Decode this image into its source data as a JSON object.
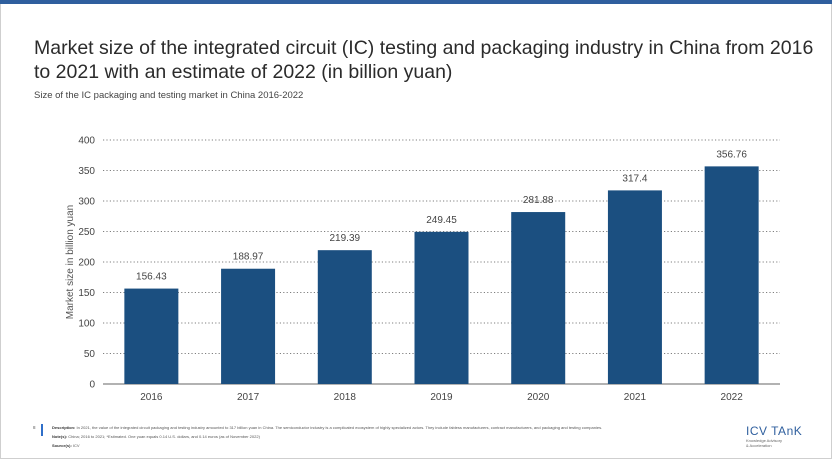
{
  "title": "Market size of the integrated circuit (IC) testing and packaging industry in China from 2016 to 2021 with an estimate of 2022 (in billion yuan)",
  "subtitle": "Size of the IC packaging and testing market in China 2016-2022",
  "colors": {
    "bar": "#1b4f80",
    "accent": "#2f5f9e",
    "grid": "#555555"
  },
  "chart_data": {
    "type": "bar",
    "categories": [
      "2016",
      "2017",
      "2018",
      "2019",
      "2020",
      "2021",
      "2022"
    ],
    "values": [
      156.43,
      188.97,
      219.39,
      249.45,
      281.88,
      317.4,
      356.76
    ],
    "data_labels": [
      "156.43",
      "188.97",
      "219.39",
      "249.45",
      "281.88",
      "317.4",
      "356.76"
    ],
    "ylabel": "Market size in billion yuan",
    "xlabel": "",
    "ylim": [
      0,
      400
    ],
    "yticks": [
      0,
      50,
      100,
      150,
      200,
      250,
      300,
      350,
      400
    ],
    "grid": true,
    "grid_style": "dotted",
    "legend": "none"
  },
  "footer": {
    "page_number": "8",
    "description_label": "Description:",
    "description_text": "In 2021, the value of the integrated circuit packaging and testing industry amounted to 317 billion yuan in China. The semiconductor industry is a complicated ecosystem of highly specialized actors. They include fabless manufacturers, contract manufacturers, and packaging and testing companies.",
    "notes_label": "Note(s):",
    "notes_text": "China; 2016 to 2021; *Estimated. One yuan equals 0.14 U.S. dollars, and 0.14 euros (as of November 2022)",
    "source_label": "Source(s):",
    "source_text": "ICV"
  },
  "logo": {
    "name": "ICV TAnK",
    "tagline_1": "Knowledge Advisory",
    "tagline_2": "& Acceleration"
  }
}
